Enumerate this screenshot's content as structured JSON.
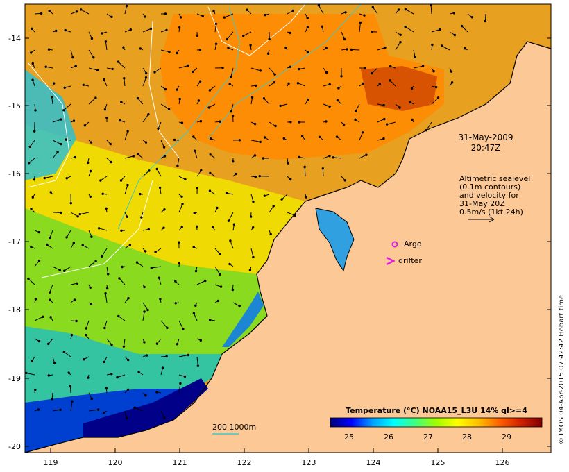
{
  "map": {
    "date_line1": "31-May-2009",
    "date_line2": "20:47Z",
    "altimetry_note": [
      "Altimetric sealevel",
      "(0.1m contours)",
      "and velocity for",
      "31-May 20Z",
      "0.5m/s (1kt 24h)"
    ],
    "argo_label": "Argo",
    "drifter_label": "drifter",
    "bathy_label": "200  1000m",
    "credit": "© IMOS 04-Apr-2015 07:42:42 Hobart time",
    "colors": {
      "land": "#fcc896",
      "coast": "#000000",
      "marker": "#e020e0",
      "isobath": "#40c8c8",
      "sealevel_contour": "#ffffff",
      "vector": "#000000"
    }
  },
  "axes": {
    "x_ticks": [
      "119",
      "120",
      "121",
      "122",
      "123",
      "124",
      "125",
      "126"
    ],
    "y_ticks": [
      "-14",
      "-15",
      "-16",
      "-17",
      "-18",
      "-19",
      "-20"
    ]
  },
  "colorbar": {
    "title": "Temperature (°C) NOAA15_L3U 14% ql>=4",
    "ticks": [
      "25",
      "26",
      "27",
      "28",
      "29"
    ],
    "stops": [
      "#00007a",
      "#0000ff",
      "#00a0ff",
      "#00ffff",
      "#40ff80",
      "#a0ff00",
      "#ffff00",
      "#ffc000",
      "#ff6000",
      "#d02000",
      "#800000"
    ]
  }
}
